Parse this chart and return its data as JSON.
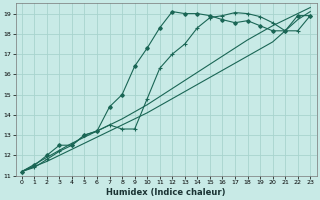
{
  "xlabel": "Humidex (Indice chaleur)",
  "background_color": "#c8eae6",
  "grid_color": "#a8d4ce",
  "line_color": "#1a6655",
  "xlim": [
    -0.5,
    23.5
  ],
  "ylim": [
    11,
    19.5
  ],
  "yticks": [
    11,
    12,
    13,
    14,
    15,
    16,
    17,
    18,
    19
  ],
  "xticks": [
    0,
    1,
    2,
    3,
    4,
    5,
    6,
    7,
    8,
    9,
    10,
    11,
    12,
    13,
    14,
    15,
    16,
    17,
    18,
    19,
    20,
    21,
    22,
    23
  ],
  "line1_x": [
    0,
    2,
    4,
    6,
    8,
    10,
    12,
    14,
    16,
    18,
    20,
    22,
    23
  ],
  "line1_y": [
    11.2,
    11.7,
    12.3,
    12.9,
    13.5,
    14.1,
    14.8,
    15.5,
    16.2,
    16.9,
    17.6,
    18.7,
    19.1
  ],
  "line2_x": [
    0,
    2,
    4,
    6,
    8,
    10,
    12,
    14,
    16,
    18,
    20,
    22,
    23
  ],
  "line2_y": [
    11.2,
    11.9,
    12.6,
    13.2,
    13.8,
    14.5,
    15.3,
    16.1,
    16.9,
    17.7,
    18.4,
    19.0,
    19.3
  ],
  "line3_x": [
    0,
    1,
    2,
    3,
    4,
    5,
    6,
    7,
    8,
    9,
    10,
    11,
    12,
    13,
    14,
    15,
    16,
    17,
    18,
    19,
    20,
    21,
    22,
    23
  ],
  "line3_y": [
    11.2,
    11.4,
    11.8,
    12.2,
    12.5,
    13.0,
    13.2,
    13.5,
    13.3,
    13.3,
    14.8,
    16.3,
    17.0,
    17.5,
    18.3,
    18.8,
    18.9,
    19.05,
    19.0,
    18.85,
    18.55,
    18.15,
    18.15,
    18.9
  ],
  "line4_x": [
    0,
    1,
    2,
    3,
    4,
    5,
    6,
    7,
    8,
    9,
    10,
    11,
    12,
    13,
    14,
    15,
    16,
    17,
    18,
    19,
    20,
    21,
    22,
    23
  ],
  "line4_y": [
    11.2,
    11.5,
    12.0,
    12.5,
    12.5,
    13.0,
    13.2,
    14.4,
    15.0,
    16.4,
    17.3,
    18.3,
    19.1,
    19.0,
    19.0,
    18.9,
    18.7,
    18.55,
    18.65,
    18.4,
    18.15,
    18.15,
    18.9,
    18.9
  ]
}
